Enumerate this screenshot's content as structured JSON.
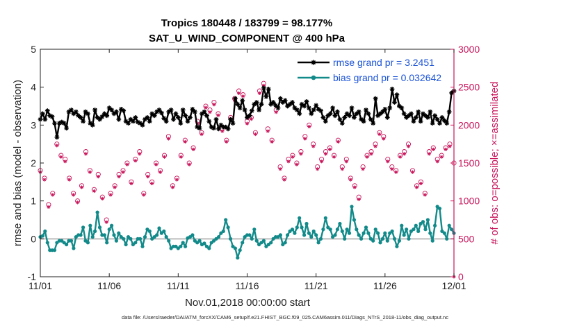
{
  "title_line1": "Tropics 180448 / 183799 = 98.177%",
  "title_line2": "SAT_U_WIND_COMPONENT @ 400 hPa",
  "footer": "data file: /Users/raeder/DAI/ATM_forcXX/CAM6_setup/f.e21.FHIST_BGC.f09_025.CAM6assim.011/Diags_NTrS_2018-11/obs_diag_output.nc",
  "colors": {
    "rmse": "#000000",
    "bias": "#138a8a",
    "obs": "#c9145a",
    "zero_line": "#bdbdbd",
    "legend_text": "#1a52d6"
  },
  "chart_data": {
    "type": "line",
    "xlabel": "Nov.01,2018 00:00:00 start",
    "ylabel": "rmse and bias (model - observation)",
    "y2label": "# of obs: o=possible; ×=assimilated",
    "xlim": [
      0,
      30
    ],
    "ylim": [
      -1,
      5
    ],
    "y2lim": [
      0,
      3000
    ],
    "x_ticks": [
      0,
      5,
      10,
      15,
      20,
      25,
      30
    ],
    "x_tick_labels": [
      "11/01",
      "11/06",
      "11/11",
      "11/16",
      "11/21",
      "11/26",
      "12/01"
    ],
    "y_ticks": [
      -1,
      0,
      1,
      2,
      3,
      4,
      5
    ],
    "y_tick_labels": [
      "-1",
      "0",
      "1",
      "2",
      "3",
      "4",
      "5"
    ],
    "y2_ticks": [
      0,
      500,
      1000,
      1500,
      2000,
      2500,
      3000
    ],
    "y2_tick_labels": [
      "0",
      "500",
      "1000",
      "1500",
      "2000",
      "2500",
      "3000"
    ],
    "legend_position": "top-right",
    "series": [
      {
        "name": "rmse",
        "legend": "rmse grand pr = 3.2451",
        "axis": "left",
        "style": "line-star",
        "values": [
          3.15,
          3.3,
          3.15,
          3.38,
          3.25,
          3.22,
          3.05,
          2.68,
          3.05,
          3.08,
          3.05,
          2.92,
          3.35,
          3.4,
          3.3,
          3.35,
          3.25,
          3.2,
          3.1,
          3.35,
          3.3,
          3.05,
          3.0,
          3.4,
          3.2,
          3.15,
          3.22,
          3.3,
          3.25,
          3.45,
          3.4,
          3.3,
          3.35,
          3.15,
          3.42,
          3.38,
          3.1,
          3.05,
          3.15,
          3.1,
          3.2,
          3.08,
          3.05,
          3.0,
          3.15,
          3.2,
          3.1,
          3.3,
          3.25,
          3.35,
          3.4,
          3.32,
          3.18,
          3.1,
          3.35,
          3.4,
          3.15,
          3.3,
          3.2,
          3.05,
          3.4,
          3.25,
          3.1,
          3.2,
          3.42,
          3.35,
          2.95,
          2.92,
          3.3,
          3.35,
          3.25,
          3.1,
          2.95,
          2.92,
          3.15,
          2.9,
          3.0,
          2.95,
          2.95,
          2.9,
          3.15,
          3.05,
          3.7,
          3.55,
          3.45,
          3.65,
          3.4,
          3.2,
          3.25,
          3.38,
          3.55,
          3.6,
          3.4,
          3.55,
          3.98,
          3.75,
          3.95,
          3.55,
          3.6,
          3.52,
          3.45,
          3.7,
          3.6,
          3.65,
          3.5,
          3.55,
          3.6,
          3.45,
          3.4,
          3.3,
          3.55,
          3.5,
          3.62,
          3.45,
          3.3,
          3.4,
          3.52,
          3.42,
          3.38,
          3.2,
          3.1,
          3.25,
          3.3,
          3.45,
          3.25,
          3.35,
          3.15,
          3.05,
          3.2,
          3.3,
          3.25,
          3.45,
          3.2,
          3.3,
          3.35,
          3.15,
          3.1,
          3.4,
          3.3,
          3.15,
          3.05,
          3.7,
          3.25,
          3.3,
          3.35,
          3.42,
          3.2,
          3.45,
          3.95,
          3.6,
          3.8,
          3.5,
          3.45,
          3.3,
          3.2,
          3.25,
          3.3,
          3.1,
          3.2,
          3.35,
          3.1,
          3.3,
          3.25,
          3.2,
          3.35,
          3.05,
          3.25,
          3.15,
          3.05,
          3.2,
          3.12,
          3.05,
          3.35,
          3.85,
          3.9
        ]
      },
      {
        "name": "bias",
        "legend": "bias grand pr = 0.032642",
        "axis": "left",
        "style": "line-dot",
        "values": [
          0.05,
          0.08,
          0.2,
          -0.1,
          -0.3,
          -0.3,
          -0.3,
          -0.1,
          -0.05,
          -0.05,
          -0.1,
          -0.15,
          -0.05,
          -0.05,
          -0.25,
          0.05,
          0.1,
          0.1,
          0.3,
          -0.05,
          -0.1,
          0.35,
          0.05,
          0.2,
          0.7,
          0.3,
          0.1,
          0.1,
          -0.1,
          0.25,
          0.35,
          0.1,
          -0.05,
          0.15,
          0.05,
          0.0,
          -0.15,
          0.05,
          0.0,
          -0.15,
          -0.1,
          0.0,
          0.0,
          -0.2,
          0.05,
          0.25,
          0.2,
          0.0,
          0.05,
          0.1,
          0.28,
          0.15,
          0.2,
          0.05,
          -0.05,
          -0.25,
          -0.2,
          -0.2,
          -0.25,
          -0.2,
          -0.1,
          -0.2,
          0.02,
          0.05,
          0.1,
          -0.05,
          -0.1,
          -0.05,
          -0.15,
          -0.12,
          -0.2,
          -0.25,
          -0.1,
          -0.05,
          0.0,
          0.05,
          0.15,
          0.2,
          0.5,
          0.3,
          0.0,
          -0.2,
          -0.25,
          -0.5,
          -0.3,
          -0.1,
          0.05,
          0.1,
          0.1,
          0.0,
          0.25,
          -0.05,
          -0.15,
          -0.1,
          -0.05,
          -0.2,
          -0.15,
          -0.1,
          0.0,
          0.05,
          0.05,
          0.1,
          -0.15,
          -0.1,
          0.1,
          0.2,
          0.25,
          0.15,
          0.3,
          0.55,
          0.3,
          0.1,
          0.4,
          0.15,
          0.05,
          0.2,
          0.1,
          -0.1,
          0.0,
          0.25,
          0.55,
          0.3,
          0.25,
          0.05,
          0.1,
          0.25,
          0.4,
          0.2,
          0.0,
          0.25,
          0.15,
          0.85,
          0.5,
          0.25,
          0.1,
          0.0,
          0.15,
          0.3,
          0.15,
          0.0,
          -0.05,
          0.25,
          0.15,
          -0.1,
          0.0,
          0.15,
          -0.05,
          0.15,
          0.2,
          0.0,
          -0.2,
          -0.05,
          0.35,
          0.1,
          0.25,
          0.0,
          0.2,
          0.25,
          0.35,
          0.2,
          0.4,
          0.45,
          0.25,
          0.5,
          0.15,
          -0.05,
          0.35,
          0.85,
          0.8,
          0.2,
          0.15,
          0.0,
          0.35,
          0.25,
          0.15
        ]
      },
      {
        "name": "obs possible",
        "axis": "right",
        "style": "circle",
        "values": [
          1400,
          1300,
          950,
          1100,
          1750,
          1600,
          1550,
          1300,
          1100,
          1000,
          1200,
          1650,
          1400,
          1150,
          1350,
          1050,
          750,
          1100,
          1200,
          1350,
          1400,
          1500,
          1250,
          1550,
          1650,
          1100,
          1350,
          1250,
          1500,
          1400,
          1600,
          1850,
          1200,
          1300,
          1600,
          1800,
          1500,
          1700,
          2050,
          1900,
          2250,
          2200,
          2300,
          2150,
          1950,
          1800,
          2100,
          2350,
          2450,
          2400,
          2050,
          2100,
          1900,
          2450,
          2550,
          1950,
          1800,
          2200,
          1450,
          1300,
          1550,
          1600,
          1500,
          1650,
          1850,
          2000,
          1750,
          1450,
          1550,
          1650,
          1700,
          1600,
          1800,
          1450,
          1550,
          1300,
          1200,
          1050,
          1450,
          1600,
          1650,
          1750,
          1900,
          1850,
          1550,
          1450,
          1400,
          1600,
          1650,
          1750,
          1400,
          1200,
          1250,
          1100,
          1650,
          1700,
          1550,
          1600,
          1700,
          1750,
          1500
        ]
      },
      {
        "name": "obs assimilated",
        "axis": "right",
        "style": "star",
        "values": [
          1380,
          1280,
          920,
          1080,
          1730,
          1580,
          1520,
          1280,
          1080,
          980,
          1180,
          1620,
          1380,
          1130,
          1320,
          1030,
          720,
          1080,
          1180,
          1320,
          1380,
          1480,
          1230,
          1530,
          1620,
          1080,
          1320,
          1230,
          1480,
          1380,
          1580,
          1820,
          1180,
          1280,
          1580,
          1780,
          1480,
          1680,
          2020,
          1880,
          2230,
          2170,
          2270,
          2130,
          1920,
          1780,
          2080,
          2320,
          2420,
          2380,
          2020,
          2080,
          1880,
          2420,
          2520,
          1920,
          1780,
          2170,
          1420,
          1280,
          1520,
          1580,
          1480,
          1620,
          1820,
          1980,
          1720,
          1420,
          1520,
          1620,
          1680,
          1580,
          1780,
          1420,
          1520,
          1280,
          1180,
          1020,
          1420,
          1580,
          1620,
          1720,
          1880,
          1820,
          1520,
          1420,
          1380,
          1580,
          1620,
          1720,
          1380,
          1180,
          1230,
          1080,
          1620,
          1680,
          1520,
          1580,
          1680,
          1720,
          0
        ]
      }
    ]
  }
}
